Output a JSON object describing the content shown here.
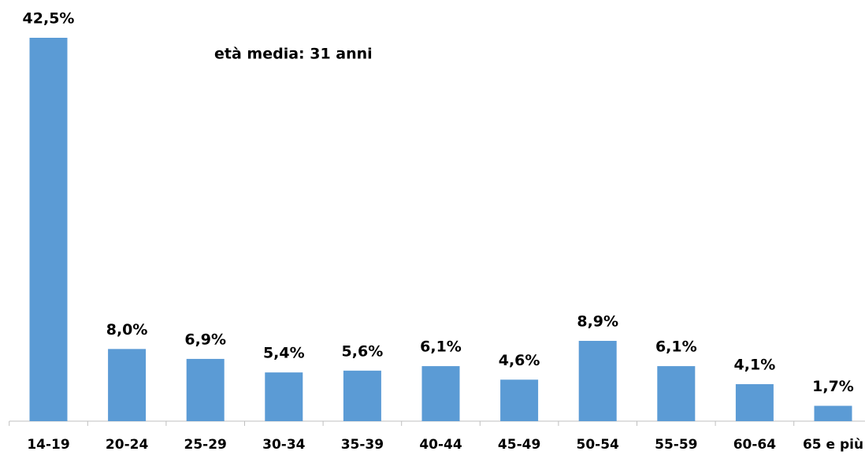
{
  "chart_data": {
    "type": "bar",
    "annotation": "età media: 31 anni",
    "categories": [
      "14-19",
      "20-24",
      "25-29",
      "30-34",
      "35-39",
      "40-44",
      "45-49",
      "50-54",
      "55-59",
      "60-64",
      "65 e più"
    ],
    "values": [
      42.5,
      8.0,
      6.9,
      5.4,
      5.6,
      6.1,
      4.6,
      8.9,
      6.1,
      4.1,
      1.7
    ],
    "value_labels": [
      "42,5%",
      "8,0%",
      "6,9%",
      "5,4%",
      "5,6%",
      "6,1%",
      "4,6%",
      "8,9%",
      "6,1%",
      "4,1%",
      "1,7%"
    ],
    "color": "#5b9bd5"
  }
}
